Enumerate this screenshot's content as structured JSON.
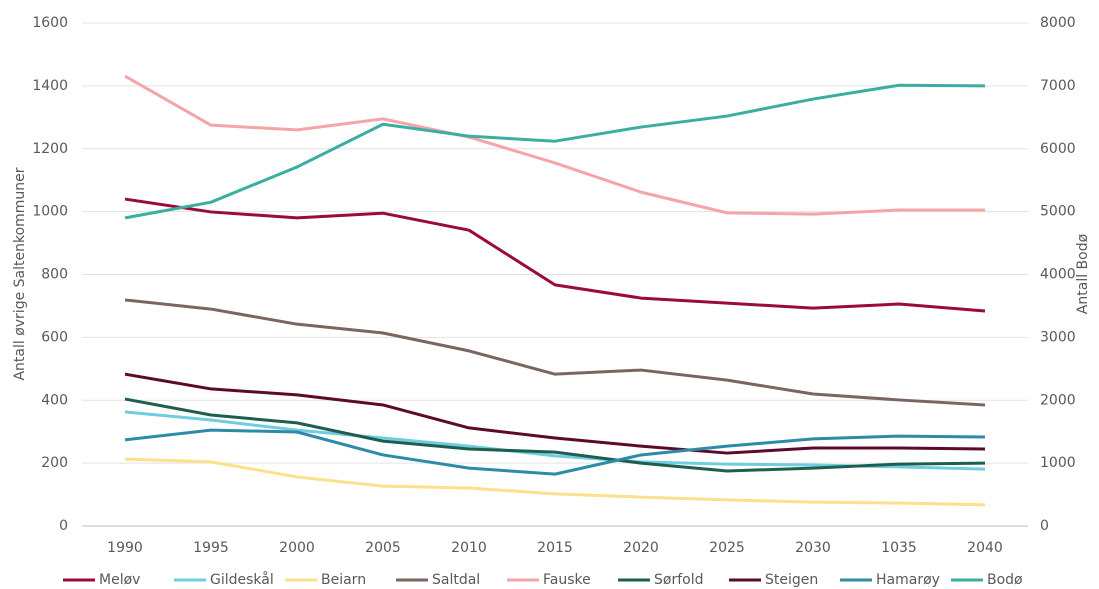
{
  "chart_data": {
    "type": "line",
    "categories": [
      "1990",
      "1995",
      "2000",
      "2005",
      "2010",
      "2015",
      "2020",
      "2025",
      "2030",
      "1035",
      "2040"
    ],
    "y_label": "Antall øvrige Saltenkommuner",
    "y2_label": "Antall Bodø",
    "ylim": [
      0,
      1600
    ],
    "yticks": [
      0,
      200,
      400,
      600,
      800,
      1000,
      1200,
      1400,
      1600
    ],
    "y2lim": [
      0,
      8000
    ],
    "y2ticks": [
      0,
      1000,
      2000,
      3000,
      4000,
      5000,
      6000,
      7000,
      8000
    ],
    "grid": true,
    "legend": "bottom",
    "series": [
      {
        "name": "Meløv",
        "color": "#9b0a3a",
        "values": [
          1040,
          999,
          980,
          995,
          941,
          767,
          725,
          709,
          693,
          706,
          684
        ]
      },
      {
        "name": "Gildeskål",
        "color": "#6fcde0",
        "values": [
          363,
          337,
          305,
          280,
          254,
          223,
          204,
          197,
          194,
          188,
          181
        ]
      },
      {
        "name": "Beiarn",
        "color": "#fde08c",
        "values": [
          213,
          204,
          156,
          127,
          121,
          102,
          92,
          83,
          76,
          73,
          67
        ]
      },
      {
        "name": "Saltdal",
        "color": "#7a6661",
        "values": [
          719,
          690,
          642,
          614,
          557,
          483,
          496,
          464,
          420,
          401,
          385
        ]
      },
      {
        "name": "Fauske",
        "color": "#f4a5a8",
        "values": [
          1431,
          1275,
          1260,
          1295,
          1237,
          1155,
          1062,
          996,
          992,
          1005,
          1005
        ]
      },
      {
        "name": "Sørfold",
        "color": "#1e5e4e",
        "values": [
          404,
          353,
          328,
          270,
          245,
          235,
          200,
          175,
          184,
          197,
          200
        ]
      },
      {
        "name": "Steigen",
        "color": "#5c0a2a",
        "values": [
          483,
          436,
          417,
          385,
          312,
          280,
          254,
          232,
          248,
          248,
          245
        ]
      },
      {
        "name": "Hamarøy",
        "color": "#2d8ba8",
        "values": [
          274,
          305,
          299,
          226,
          184,
          165,
          226,
          254,
          277,
          286,
          283
        ]
      },
      {
        "name": "Bodø",
        "color": "#3aaea0",
        "axis": "y2",
        "values": [
          4900,
          5150,
          5710,
          6390,
          6200,
          6120,
          6345,
          6520,
          6790,
          7010,
          7000
        ]
      }
    ]
  }
}
